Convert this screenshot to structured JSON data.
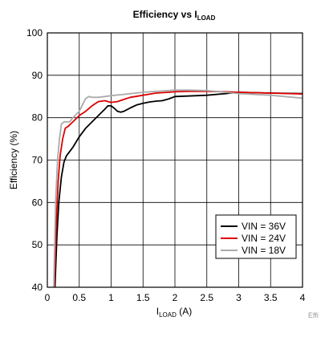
{
  "chart_data": {
    "type": "line",
    "title": "Efficiency vs I",
    "title_sub": "LOAD",
    "xlabel": "I",
    "xlabel_sub": "LOAD",
    "xlabel_unit": " (A)",
    "ylabel": "Efficiency (%)",
    "xlim": [
      0,
      4
    ],
    "ylim": [
      40,
      100
    ],
    "x_ticks": [
      0,
      0.5,
      1,
      1.5,
      2,
      2.5,
      3,
      3.5,
      4
    ],
    "x_tick_labels": [
      "0",
      "0.5",
      "1",
      "1.5",
      "2",
      "2.5",
      "3",
      "3.5",
      "4"
    ],
    "y_ticks": [
      40,
      50,
      60,
      70,
      80,
      90,
      100
    ],
    "y_tick_labels": [
      "40",
      "50",
      "60",
      "70",
      "80",
      "90",
      "100"
    ],
    "grid": true,
    "legend_position": "bottom-right",
    "series": [
      {
        "name": "VIN = 36V",
        "color": "#000000",
        "x": [
          0.12,
          0.15,
          0.18,
          0.22,
          0.26,
          0.3,
          0.35,
          0.4,
          0.5,
          0.6,
          0.7,
          0.8,
          0.9,
          0.95,
          1.0,
          1.05,
          1.1,
          1.15,
          1.2,
          1.3,
          1.4,
          1.5,
          1.6,
          1.7,
          1.8,
          1.9,
          2.0,
          2.2,
          2.5,
          2.8,
          3.0,
          3.5,
          4.0
        ],
        "y": [
          40,
          52,
          60,
          66,
          69.5,
          71,
          72,
          73,
          75.5,
          77.5,
          79,
          80.5,
          82,
          82.8,
          82.8,
          82.2,
          81.5,
          81.3,
          81.5,
          82.3,
          83,
          83.4,
          83.7,
          83.9,
          84.0,
          84.4,
          85.0,
          85.1,
          85.3,
          85.7,
          86.0,
          85.8,
          85.7
        ]
      },
      {
        "name": "VIN = 24V",
        "color": "#dd0000",
        "x": [
          0.11,
          0.14,
          0.17,
          0.2,
          0.24,
          0.28,
          0.33,
          0.4,
          0.5,
          0.6,
          0.7,
          0.8,
          0.9,
          1.0,
          1.1,
          1.2,
          1.3,
          1.5,
          1.7,
          1.9,
          2.0,
          2.2,
          2.5,
          2.8,
          3.0,
          3.5,
          4.0
        ],
        "y": [
          40,
          55,
          65,
          71,
          75,
          77.5,
          78,
          79,
          80.5,
          81.5,
          82.8,
          83.8,
          84,
          83.6,
          83.8,
          84.3,
          84.8,
          85.3,
          85.8,
          86.0,
          86.1,
          86.2,
          86.2,
          86.1,
          86.0,
          85.8,
          85.6
        ]
      },
      {
        "name": "VIN = 18V",
        "color": "#aaaaaa",
        "x": [
          0.1,
          0.13,
          0.16,
          0.19,
          0.22,
          0.26,
          0.3,
          0.35,
          0.4,
          0.5,
          0.55,
          0.6,
          0.65,
          0.7,
          0.8,
          0.9,
          1.0,
          1.2,
          1.5,
          1.8,
          2.0,
          2.2,
          2.5,
          2.8,
          3.0,
          3.5,
          4.0
        ],
        "y": [
          40,
          60,
          70,
          75,
          78.5,
          79,
          79,
          79,
          80,
          81.5,
          83,
          84.5,
          85,
          84.8,
          84.8,
          85,
          85.2,
          85.5,
          86,
          86.3,
          86.5,
          86.5,
          86.4,
          86.0,
          85.7,
          85.3,
          84.6
        ]
      }
    ]
  },
  "watermark": "Effi"
}
